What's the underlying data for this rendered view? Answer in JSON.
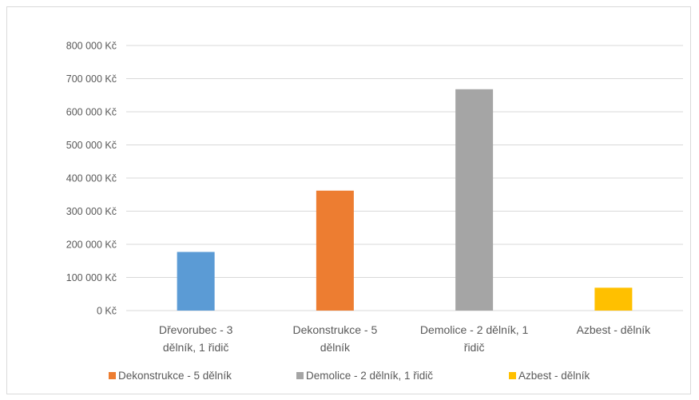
{
  "chart_data": {
    "type": "bar",
    "categories": [
      [
        "Dřevorubec - 3",
        "dělník, 1 řidič"
      ],
      [
        "Dekonstrukce - 5",
        "dělník"
      ],
      [
        "Demolice - 2 dělník, 1",
        "řidič"
      ],
      [
        "Azbest - dělník"
      ]
    ],
    "values": [
      177000,
      362000,
      668000,
      69000
    ],
    "colors": [
      "#5b9bd5",
      "#ed7d31",
      "#a5a5a5",
      "#ffc000"
    ],
    "ylim": [
      0,
      800000
    ],
    "yticks": [
      {
        "value": 0,
        "label": "0 Kč"
      },
      {
        "value": 100000,
        "label": "100 000 Kč"
      },
      {
        "value": 200000,
        "label": "200 000 Kč"
      },
      {
        "value": 300000,
        "label": "300 000 Kč"
      },
      {
        "value": 400000,
        "label": "400 000 Kč"
      },
      {
        "value": 500000,
        "label": "500 000 Kč"
      },
      {
        "value": 600000,
        "label": "600 000 Kč"
      },
      {
        "value": 700000,
        "label": "700 000 Kč"
      },
      {
        "value": 800000,
        "label": "800 000 Kč"
      }
    ],
    "grid": true,
    "gridColor": "#d9d9d9",
    "legend": {
      "position": "bottom",
      "entries": [
        {
          "label": "Dekonstrukce - 5 dělník",
          "color": "#ed7d31"
        },
        {
          "label": "Demolice - 2 dělník, 1 řidič",
          "color": "#a5a5a5"
        },
        {
          "label": "Azbest - dělník",
          "color": "#ffc000"
        }
      ]
    }
  }
}
